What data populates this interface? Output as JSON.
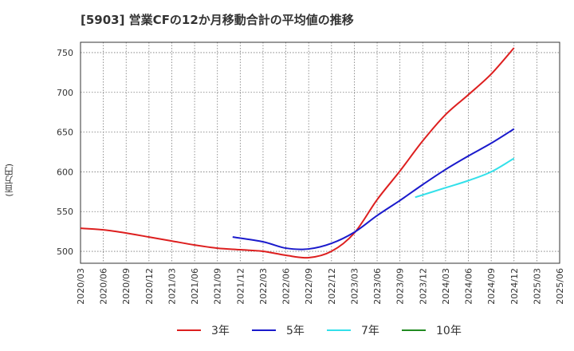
{
  "chart_data": {
    "type": "line",
    "title": "[5903]  営業CFの12か月移動合計の平均値の推移",
    "ylabel": "(百万円)",
    "xlabel": "",
    "x_ticks": [
      "2020/03",
      "2020/06",
      "2020/09",
      "2020/12",
      "2021/03",
      "2021/06",
      "2021/09",
      "2021/12",
      "2022/03",
      "2022/06",
      "2022/09",
      "2022/12",
      "2023/03",
      "2023/06",
      "2023/09",
      "2023/12",
      "2024/03",
      "2024/06",
      "2024/09",
      "2024/12",
      "2025/03",
      "2025/06"
    ],
    "y_ticks": [
      500,
      550,
      600,
      650,
      700,
      750
    ],
    "ylim": [
      485,
      763
    ],
    "grid": true,
    "legend_position": "bottom",
    "series": [
      {
        "name": "3年",
        "color": "#dd1f1f",
        "points": [
          [
            "2020/03",
            529
          ],
          [
            "2020/06",
            527
          ],
          [
            "2020/09",
            523
          ],
          [
            "2020/12",
            518
          ],
          [
            "2021/03",
            513
          ],
          [
            "2021/06",
            508
          ],
          [
            "2021/09",
            504
          ],
          [
            "2021/12",
            502
          ],
          [
            "2022/03",
            500
          ],
          [
            "2022/06",
            495
          ],
          [
            "2022/09",
            492
          ],
          [
            "2022/12",
            500
          ],
          [
            "2023/03",
            523
          ],
          [
            "2023/06",
            565
          ],
          [
            "2023/09",
            601
          ],
          [
            "2023/12",
            639
          ],
          [
            "2024/03",
            672
          ],
          [
            "2024/06",
            697
          ],
          [
            "2024/09",
            723
          ],
          [
            "2024/12",
            756
          ]
        ]
      },
      {
        "name": "5年",
        "color": "#1a1acc",
        "points": [
          [
            "2021/11",
            518
          ],
          [
            "2022/03",
            512
          ],
          [
            "2022/06",
            504
          ],
          [
            "2022/09",
            503
          ],
          [
            "2022/12",
            510
          ],
          [
            "2023/03",
            524
          ],
          [
            "2023/06",
            545
          ],
          [
            "2023/09",
            564
          ],
          [
            "2023/12",
            584
          ],
          [
            "2024/03",
            603
          ],
          [
            "2024/06",
            620
          ],
          [
            "2024/09",
            636
          ],
          [
            "2024/12",
            654
          ]
        ]
      },
      {
        "name": "7年",
        "color": "#33e0ea",
        "points": [
          [
            "2023/11",
            568
          ],
          [
            "2024/03",
            580
          ],
          [
            "2024/06",
            589
          ],
          [
            "2024/09",
            600
          ],
          [
            "2024/12",
            617
          ]
        ]
      },
      {
        "name": "10年",
        "color": "#228b22",
        "points": []
      }
    ]
  }
}
